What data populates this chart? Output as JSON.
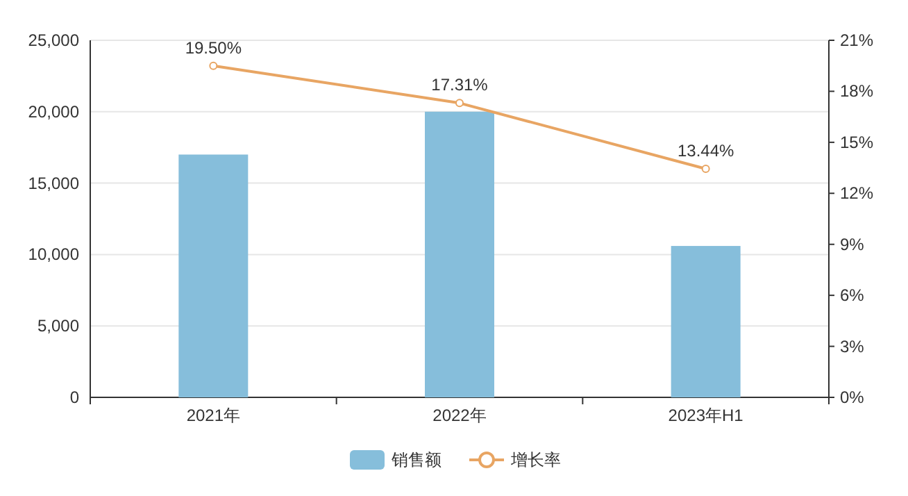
{
  "chart_data": {
    "type": "bar",
    "categories": [
      "2021年",
      "2022年",
      "2023年H1"
    ],
    "series": [
      {
        "name": "销售额",
        "color": "#86bedb",
        "values": [
          17000,
          20000,
          10600
        ]
      },
      {
        "name": "增长率",
        "type": "line",
        "axis": "y2",
        "color": "#e8a563",
        "values": [
          19.5,
          17.31,
          13.44
        ],
        "value_labels": [
          "19.50%",
          "17.31%",
          "13.44%"
        ]
      }
    ],
    "ylim": [
      0,
      25000
    ],
    "yticks": [
      {
        "value": 0,
        "label": "0"
      },
      {
        "value": 5000,
        "label": "5,000"
      },
      {
        "value": 10000,
        "label": "10,000"
      },
      {
        "value": 15000,
        "label": "15,000"
      },
      {
        "value": 20000,
        "label": "20,000"
      },
      {
        "value": 25000,
        "label": "25,000"
      }
    ],
    "y2lim": [
      0,
      21
    ],
    "y2ticks": [
      {
        "value": 0,
        "label": "0%"
      },
      {
        "value": 3,
        "label": "3%"
      },
      {
        "value": 6,
        "label": "6%"
      },
      {
        "value": 9,
        "label": "9%"
      },
      {
        "value": 12,
        "label": "12%"
      },
      {
        "value": 15,
        "label": "15%"
      },
      {
        "value": 18,
        "label": "18%"
      },
      {
        "value": 21,
        "label": "21%"
      }
    ],
    "grid": "y",
    "legend": "bottom",
    "marker": "circle"
  }
}
